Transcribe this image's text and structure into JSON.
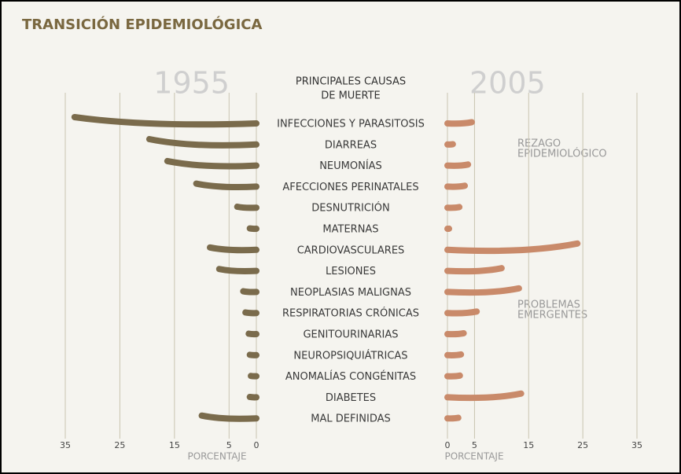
{
  "chart_data": {
    "type": "bar",
    "title": "TRANSICIÓN EPIDEMIOLÓGICA",
    "header": [
      "PRINCIPALES CAUSAS",
      "DE MUERTE"
    ],
    "categories": [
      "INFECCIONES Y PARASITOSIS",
      "DIARREAS",
      "NEUMONÍAS",
      "AFECCIONES PERINATALES",
      "DESNUTRICIÓN",
      "MATERNAS",
      "CARDIOVASCULARES",
      "LESIONES",
      "NEOPLASIAS MALIGNAS",
      "RESPIRATORIAS CRÓNICAS",
      "GENITOURINARIAS",
      "NEUROPSIQUIÁTRICAS",
      "ANOMALÍAS CONGÉNITAS",
      "DIABETES",
      "MAL DEFINIDAS"
    ],
    "series": [
      {
        "name": "1955",
        "color": "#7a6b4c",
        "xlim": [
          0,
          35
        ],
        "xticks": [
          35,
          25,
          15,
          5,
          0
        ],
        "xlabel": "PORCENTAJE",
        "values": [
          33.3,
          19.6,
          16.3,
          11,
          3.5,
          1.2,
          8.5,
          6.8,
          2.4,
          2,
          1.4,
          1.2,
          1,
          1.2,
          10
        ]
      },
      {
        "name": "2005",
        "color": "#c98a6a",
        "xlim": [
          0,
          35
        ],
        "xticks": [
          0,
          5,
          15,
          25,
          35
        ],
        "xlabel": "PORCENTAJE",
        "values": [
          4.5,
          1,
          3.8,
          3.2,
          2.2,
          0.3,
          24,
          10,
          13.2,
          5.4,
          3,
          2.5,
          2.3,
          13.6,
          2
        ]
      }
    ],
    "annotations": [
      [
        "REZAGO",
        "EPIDEMIOLÓGICO"
      ],
      [
        "PROBLEMAS",
        "EMERGENTES"
      ]
    ]
  }
}
